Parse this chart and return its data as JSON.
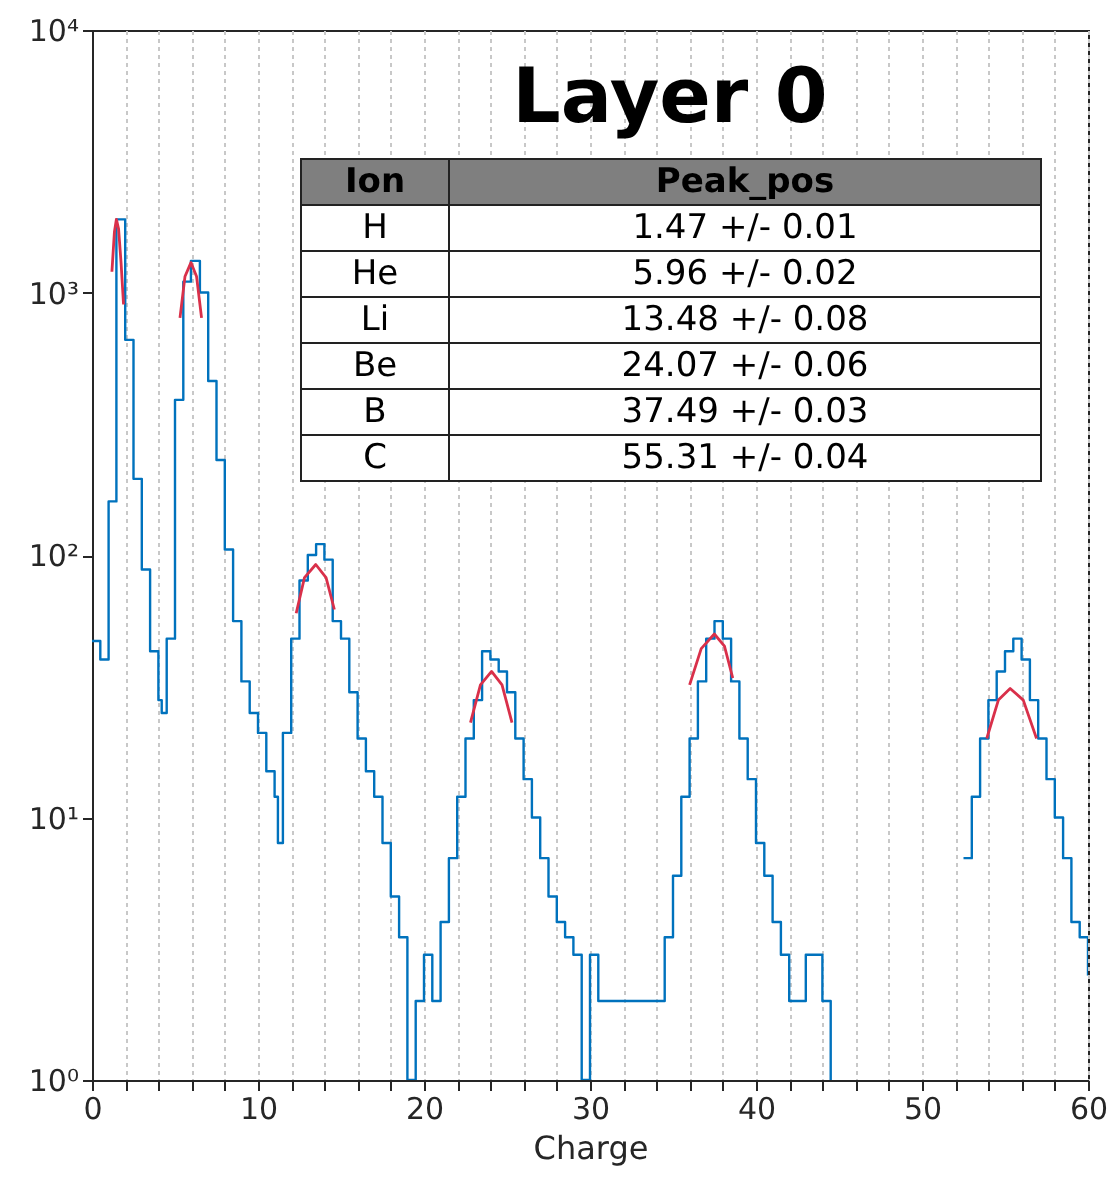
{
  "chart_data": {
    "type": "step",
    "title": "Layer 0",
    "xlabel": "Charge",
    "annotations": [
      "Ion",
      "Peak_pos",
      "H",
      "1.47 +/- 0.01",
      "He",
      "5.96 +/- 0.02",
      "Li",
      "13.48 +/- 0.08",
      "Be",
      "24.07 +/- 0.06",
      "B",
      "37.49 +/- 0.03",
      "C",
      "55.31 +/- 0.04"
    ],
    "xlim": [
      0,
      60
    ],
    "xticks": [
      0,
      {
        "value": 2,
        "label": null
      },
      {
        "value": 4,
        "label": null
      },
      {
        "value": 6,
        "label": null
      },
      {
        "value": 8,
        "label": null
      },
      10,
      {
        "value": 12,
        "label": null
      },
      {
        "value": 14,
        "label": null
      },
      {
        "value": 16,
        "label": null
      },
      {
        "value": 18,
        "label": null
      },
      20,
      {
        "value": 22,
        "label": null
      },
      {
        "value": 24,
        "label": null
      },
      {
        "value": 26,
        "label": null
      },
      {
        "value": 28,
        "label": null
      },
      30,
      {
        "value": 32,
        "label": null
      },
      {
        "value": 34,
        "label": null
      },
      {
        "value": 36,
        "label": null
      },
      {
        "value": 38,
        "label": null
      },
      40,
      {
        "value": 42,
        "label": null
      },
      {
        "value": 44,
        "label": null
      },
      {
        "value": 46,
        "label": null
      },
      {
        "value": 48,
        "label": null
      },
      50,
      {
        "value": 52,
        "label": null
      },
      {
        "value": 54,
        "label": null
      },
      {
        "value": 56,
        "label": null
      },
      {
        "value": 58,
        "label": null
      },
      60
    ],
    "ylim": [
      1,
      10000
    ],
    "yticks": [
      {
        "value": 1,
        "label": "10⁰"
      },
      {
        "value": 10,
        "label": "10¹"
      },
      {
        "value": 100,
        "label": "10²"
      },
      {
        "value": 1000,
        "label": "10³"
      },
      {
        "value": 10000,
        "label": "10⁴"
      }
    ],
    "log": "y",
    "grid": "x",
    "series": [
      {
        "type": "step",
        "color": "#0072bd",
        "x": [
          0,
          0.5,
          1,
          1.47,
          2,
          2.5,
          3,
          3.5,
          4,
          4.2,
          4.5,
          5,
          5.5,
          5.96,
          6.5,
          7,
          7.5,
          8,
          8.5,
          9,
          9.5,
          10,
          10.5,
          11,
          11.2,
          11.5,
          12,
          12.5,
          13,
          13.5,
          14,
          14.5,
          15,
          15.5,
          16,
          16.5,
          17,
          17.5,
          18,
          18.5,
          19,
          19.5,
          20,
          20.5,
          21,
          21.5,
          22,
          22.5,
          23,
          23.5,
          24,
          24.5,
          25,
          25.5,
          26,
          26.5,
          27,
          27.5,
          28,
          28.5,
          29,
          29.5,
          30,
          30.5,
          31,
          32,
          33,
          34,
          34.5,
          35,
          35.5,
          36,
          36.5,
          37,
          37.5,
          38,
          38.5,
          39,
          39.5,
          40,
          40.5,
          41,
          41.5,
          42,
          43,
          44,
          44.5,
          45,
          52,
          52.5,
          53,
          53.5,
          54,
          54.5,
          55,
          55.5,
          56,
          56.5,
          57,
          57.5,
          58,
          58.5,
          59,
          59.5,
          60
        ],
        "values": [
          47,
          40,
          160,
          1900,
          660,
          195,
          88,
          43,
          28,
          25,
          48,
          390,
          1100,
          1320,
          1000,
          460,
          230,
          105,
          56,
          33,
          25,
          21,
          15,
          12,
          8,
          21,
          48,
          80,
          100,
          110,
          96,
          56,
          48,
          30,
          20,
          15,
          12,
          8,
          5,
          3.5,
          1,
          2,
          3,
          2,
          4,
          7,
          12,
          20,
          28,
          43,
          40,
          36,
          30,
          20,
          14,
          10,
          7,
          5,
          4,
          3.5,
          3,
          1,
          3,
          2,
          2,
          2,
          2,
          2,
          3.5,
          6,
          12,
          20,
          33,
          48,
          56,
          48,
          33,
          20,
          14,
          8,
          6,
          4,
          3,
          2,
          3,
          2,
          1,
          null,
          null,
          7,
          12,
          20,
          28,
          36,
          43,
          48,
          40,
          28,
          20,
          14,
          10,
          7,
          4,
          3.5,
          2.5
        ]
      },
      {
        "type": "line",
        "color": "#d9304a",
        "x": [
          1.2,
          1.35,
          1.47,
          1.6,
          1.75,
          1.9
        ],
        "values": [
          1200,
          1700,
          1900,
          1750,
          1300,
          900
        ]
      },
      {
        "type": "line",
        "color": "#d9304a",
        "x": [
          5.3,
          5.6,
          5.96,
          6.3,
          6.6
        ],
        "values": [
          800,
          1150,
          1300,
          1150,
          800
        ]
      },
      {
        "type": "line",
        "color": "#d9304a",
        "x": [
          12.3,
          12.8,
          13.48,
          14.1,
          14.6
        ],
        "values": [
          60,
          82,
          92,
          82,
          62
        ]
      },
      {
        "type": "line",
        "color": "#d9304a",
        "x": [
          22.8,
          23.4,
          24.07,
          24.7,
          25.3
        ],
        "values": [
          23,
          32,
          36,
          32,
          23
        ]
      },
      {
        "type": "line",
        "color": "#d9304a",
        "x": [
          36,
          36.7,
          37.49,
          38.1,
          38.6
        ],
        "values": [
          32,
          44,
          50,
          45,
          34
        ]
      },
      {
        "type": "line",
        "color": "#d9304a",
        "x": [
          53.9,
          54.6,
          55.31,
          56.1,
          56.9
        ],
        "values": [
          20,
          28,
          31,
          28,
          20
        ]
      }
    ]
  }
}
